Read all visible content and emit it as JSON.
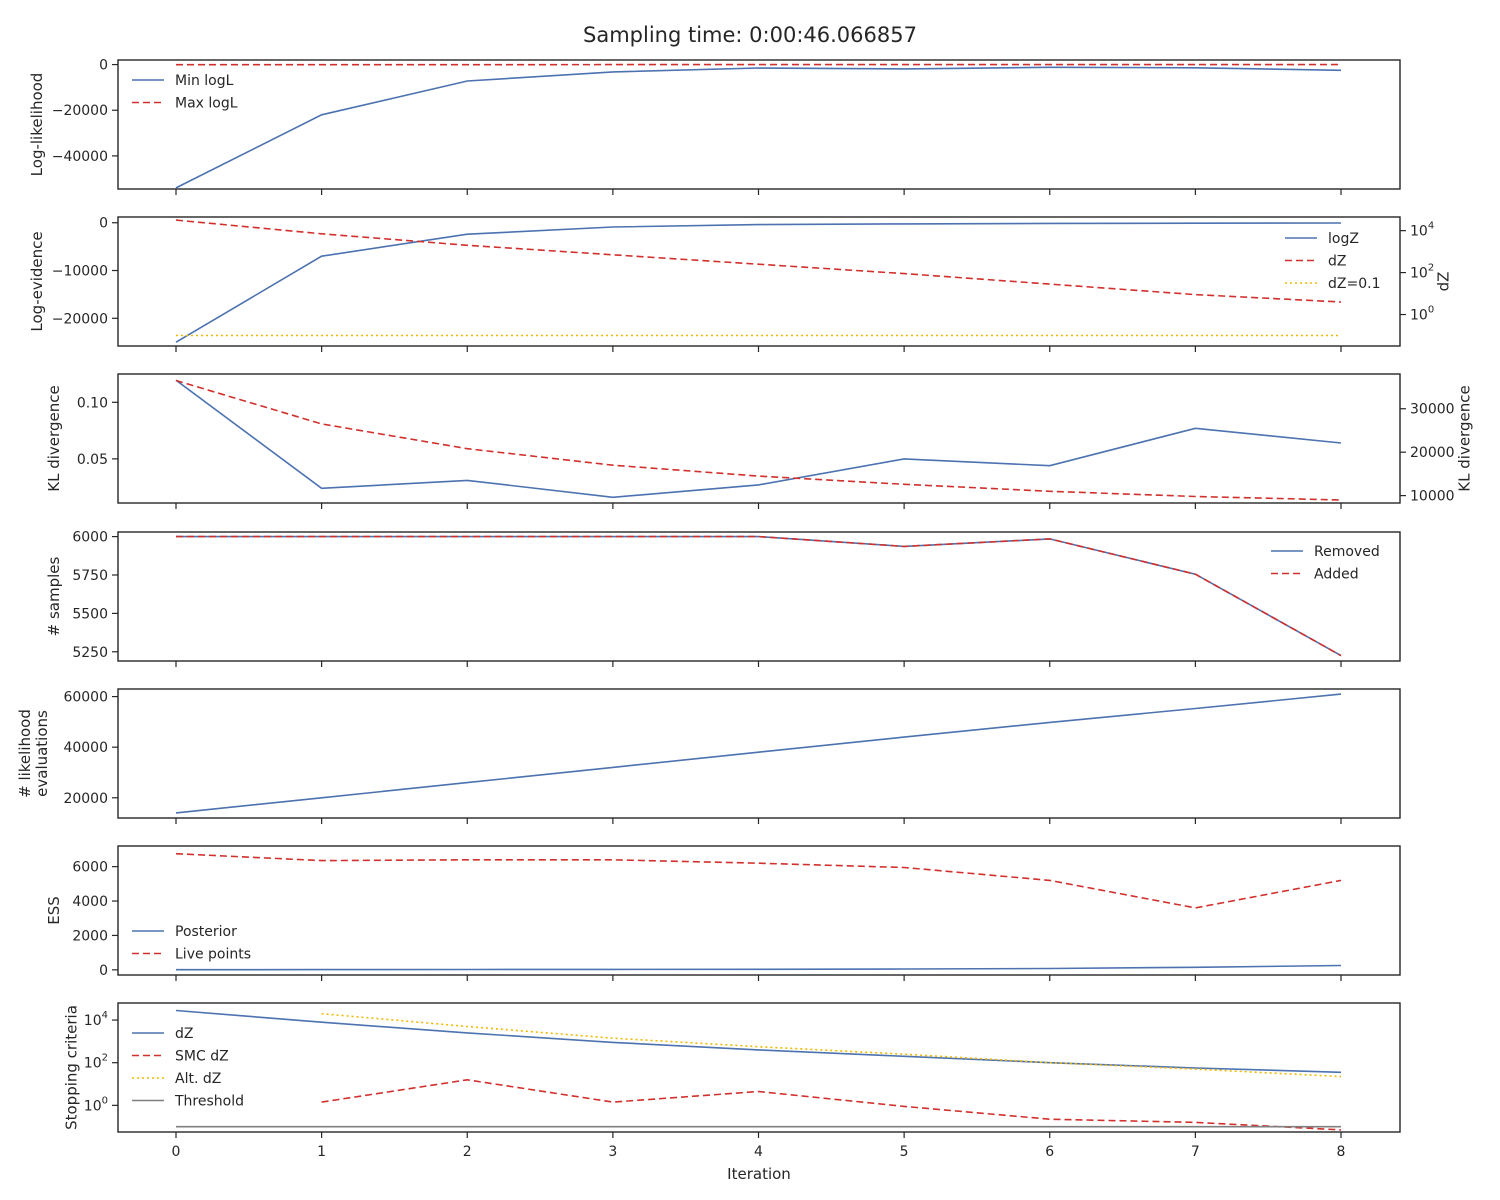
{
  "title": "Sampling time: 0:00:46.066857",
  "x_label": "Iteration",
  "x_ticks": [
    "0",
    "1",
    "2",
    "3",
    "4",
    "5",
    "6",
    "7",
    "8"
  ],
  "colors": {
    "blue": "#4c72b0",
    "red": "#d1302c",
    "gold": "#f0b800",
    "gray": "#7f7f7f"
  },
  "chart_data": [
    {
      "type": "line",
      "ylabel": "Log-likelihood",
      "ylim": [
        -54500,
        2000
      ],
      "yticks": [
        {
          "v": 0,
          "label": "0"
        },
        {
          "v": -20000,
          "label": "−20000"
        },
        {
          "v": -40000,
          "label": "−40000"
        }
      ],
      "legend": "upper-left",
      "series": [
        {
          "name": "Min logL",
          "style": "solid",
          "color": "blue",
          "x": [
            0,
            1,
            2,
            3,
            4,
            5,
            6,
            7,
            8
          ],
          "y": [
            -54000,
            -22000,
            -7200,
            -3200,
            -1500,
            -1900,
            -1200,
            -1400,
            -2500
          ]
        },
        {
          "name": "Max logL",
          "style": "dashed",
          "color": "red",
          "x": [
            0,
            1,
            2,
            3,
            4,
            5,
            6,
            7,
            8
          ],
          "y": [
            -50,
            -40,
            -40,
            -30,
            -30,
            -30,
            -30,
            -30,
            -30
          ]
        }
      ]
    },
    {
      "type": "line",
      "ylabel": "Log-evidence",
      "ylim": [
        -25800,
        1200
      ],
      "yticks": [
        {
          "v": 0,
          "label": "0"
        },
        {
          "v": -10000,
          "label": "−10000"
        },
        {
          "v": -20000,
          "label": "−20000"
        }
      ],
      "y2label": "dZ",
      "y2log": true,
      "y2lim_log10": [
        -1.5,
        4.65
      ],
      "y2ticks": [
        {
          "v": 4,
          "label": "10",
          "sup": "4"
        },
        {
          "v": 2,
          "label": "10",
          "sup": "2"
        },
        {
          "v": 0,
          "label": "10",
          "sup": "0"
        }
      ],
      "legend": "right",
      "series": [
        {
          "name": "logZ",
          "style": "solid",
          "color": "blue",
          "axis": "left",
          "x": [
            0,
            1,
            2,
            3,
            4,
            5,
            6,
            7,
            8
          ],
          "y": [
            -25000,
            -7000,
            -2400,
            -900,
            -400,
            -250,
            -150,
            -100,
            -50
          ]
        },
        {
          "name": "dZ",
          "style": "dashed",
          "color": "red",
          "axis": "right",
          "x": [
            0,
            1,
            2,
            3,
            4,
            5,
            6,
            7,
            8
          ],
          "y_log10": [
            4.5,
            3.85,
            3.3,
            2.85,
            2.4,
            1.95,
            1.45,
            0.95,
            0.6
          ]
        },
        {
          "name": "dZ=0.1",
          "style": "dotted",
          "color": "gold",
          "axis": "right",
          "x": [
            0,
            8
          ],
          "y_log10": [
            -1,
            -1
          ]
        }
      ]
    },
    {
      "type": "line",
      "ylabel": "KL divergence",
      "ylim": [
        0.011,
        0.125
      ],
      "yticks": [
        {
          "v": 0.1,
          "label": "0.10"
        },
        {
          "v": 0.05,
          "label": "0.05"
        }
      ],
      "y2label": "KL divergence",
      "y2lim": [
        8300,
        38000
      ],
      "y2ticks": [
        {
          "v": 30000,
          "label": "30000"
        },
        {
          "v": 20000,
          "label": "20000"
        },
        {
          "v": 10000,
          "label": "10000"
        }
      ],
      "series": [
        {
          "name": "",
          "style": "solid",
          "color": "blue",
          "axis": "left",
          "x": [
            0,
            1,
            2,
            3,
            4,
            5,
            6,
            7,
            8
          ],
          "y": [
            0.1195,
            0.024,
            0.031,
            0.016,
            0.027,
            0.05,
            0.044,
            0.077,
            0.064
          ]
        },
        {
          "name": "",
          "style": "dashed",
          "color": "red",
          "axis": "right",
          "x": [
            0,
            1,
            2,
            3,
            4,
            5,
            6,
            7,
            8
          ],
          "y": [
            36500,
            26500,
            20800,
            17000,
            14500,
            12600,
            11000,
            9800,
            9000
          ]
        }
      ]
    },
    {
      "type": "line",
      "ylabel": "# samples",
      "ylim": [
        5190,
        6030
      ],
      "yticks": [
        {
          "v": 6000,
          "label": "6000"
        },
        {
          "v": 5750,
          "label": "5750"
        },
        {
          "v": 5500,
          "label": "5500"
        },
        {
          "v": 5250,
          "label": "5250"
        }
      ],
      "legend": "upper-right",
      "series": [
        {
          "name": "Removed",
          "style": "solid",
          "color": "blue",
          "x": [
            0,
            1,
            2,
            3,
            4,
            5,
            6,
            7,
            8
          ],
          "y": [
            6000,
            6000,
            6000,
            6000,
            6000,
            5936,
            5985,
            5755,
            5225
          ]
        },
        {
          "name": "Added",
          "style": "dashed",
          "color": "red",
          "x": [
            0,
            1,
            2,
            3,
            4,
            5,
            6,
            7,
            8
          ],
          "y": [
            6000,
            6000,
            6000,
            6000,
            6000,
            5936,
            5985,
            5755,
            5225
          ]
        }
      ]
    },
    {
      "type": "line",
      "ylabel": "# likelihood",
      "ylabel2": "evaluations",
      "ylim": [
        12000,
        63000
      ],
      "yticks": [
        {
          "v": 60000,
          "label": "60000"
        },
        {
          "v": 40000,
          "label": "40000"
        },
        {
          "v": 20000,
          "label": "20000"
        }
      ],
      "series": [
        {
          "name": "",
          "style": "solid",
          "color": "blue",
          "x": [
            0,
            1,
            2,
            3,
            4,
            5,
            6,
            7,
            8
          ],
          "y": [
            14000,
            20000,
            26000,
            32000,
            38000,
            44000,
            49800,
            55300,
            61000
          ]
        }
      ]
    },
    {
      "type": "line",
      "ylabel": "ESS",
      "ylim": [
        -300,
        7200
      ],
      "yticks": [
        {
          "v": 6000,
          "label": "6000"
        },
        {
          "v": 4000,
          "label": "4000"
        },
        {
          "v": 2000,
          "label": "2000"
        },
        {
          "v": 0,
          "label": "0"
        }
      ],
      "legend": "lower-left",
      "series": [
        {
          "name": "Posterior",
          "style": "solid",
          "color": "blue",
          "x": [
            0,
            1,
            2,
            3,
            4,
            5,
            6,
            7,
            8
          ],
          "y": [
            10,
            15,
            20,
            25,
            30,
            50,
            80,
            150,
            250
          ]
        },
        {
          "name": "Live points",
          "style": "dashed",
          "color": "red",
          "x": [
            0,
            1,
            2,
            3,
            4,
            5,
            6,
            7,
            8
          ],
          "y": [
            6750,
            6350,
            6400,
            6400,
            6200,
            5950,
            5200,
            3600,
            5200
          ]
        }
      ]
    },
    {
      "type": "line",
      "ylabel": "Stopping criteria",
      "ylog": true,
      "ylim_log10": [
        -1.25,
        4.8
      ],
      "yticks": [
        {
          "v": 4,
          "label": "10",
          "sup": "4"
        },
        {
          "v": 2,
          "label": "10",
          "sup": "2"
        },
        {
          "v": 0,
          "label": "10",
          "sup": "0"
        }
      ],
      "legend": "left",
      "series": [
        {
          "name": "dZ",
          "style": "solid",
          "color": "blue",
          "x": [
            0,
            1,
            2,
            3,
            4,
            5,
            6,
            7,
            8
          ],
          "y_log10": [
            4.45,
            3.9,
            3.4,
            2.95,
            2.6,
            2.3,
            2.0,
            1.75,
            1.55
          ]
        },
        {
          "name": "SMC dZ",
          "style": "dashed",
          "color": "red",
          "x": [
            1,
            2,
            3,
            4,
            5,
            6,
            7,
            8
          ],
          "y_log10": [
            0.15,
            1.2,
            0.15,
            0.65,
            -0.05,
            -0.65,
            -0.8,
            -1.15
          ]
        },
        {
          "name": "Alt. dZ",
          "style": "dotted",
          "color": "gold",
          "x": [
            1,
            2,
            3,
            4,
            5,
            6,
            7,
            8
          ],
          "y_log10": [
            4.3,
            3.7,
            3.15,
            2.75,
            2.4,
            2.0,
            1.7,
            1.35
          ]
        },
        {
          "name": "Threshold",
          "style": "solid",
          "color": "gray",
          "x": [
            0,
            8
          ],
          "y_log10": [
            -1,
            -1
          ]
        }
      ]
    }
  ]
}
